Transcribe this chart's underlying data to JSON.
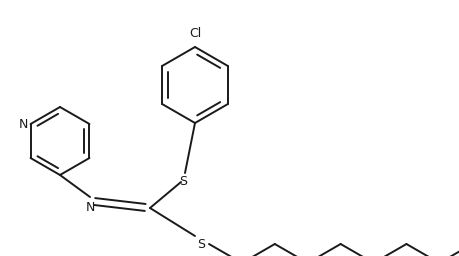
{
  "bg_color": "#ffffff",
  "line_color": "#1a1a1a",
  "line_width": 1.4,
  "figsize": [
    4.6,
    2.56
  ],
  "dpi": 100,
  "cl_label": "Cl",
  "n_label": "N",
  "s_label": "S"
}
